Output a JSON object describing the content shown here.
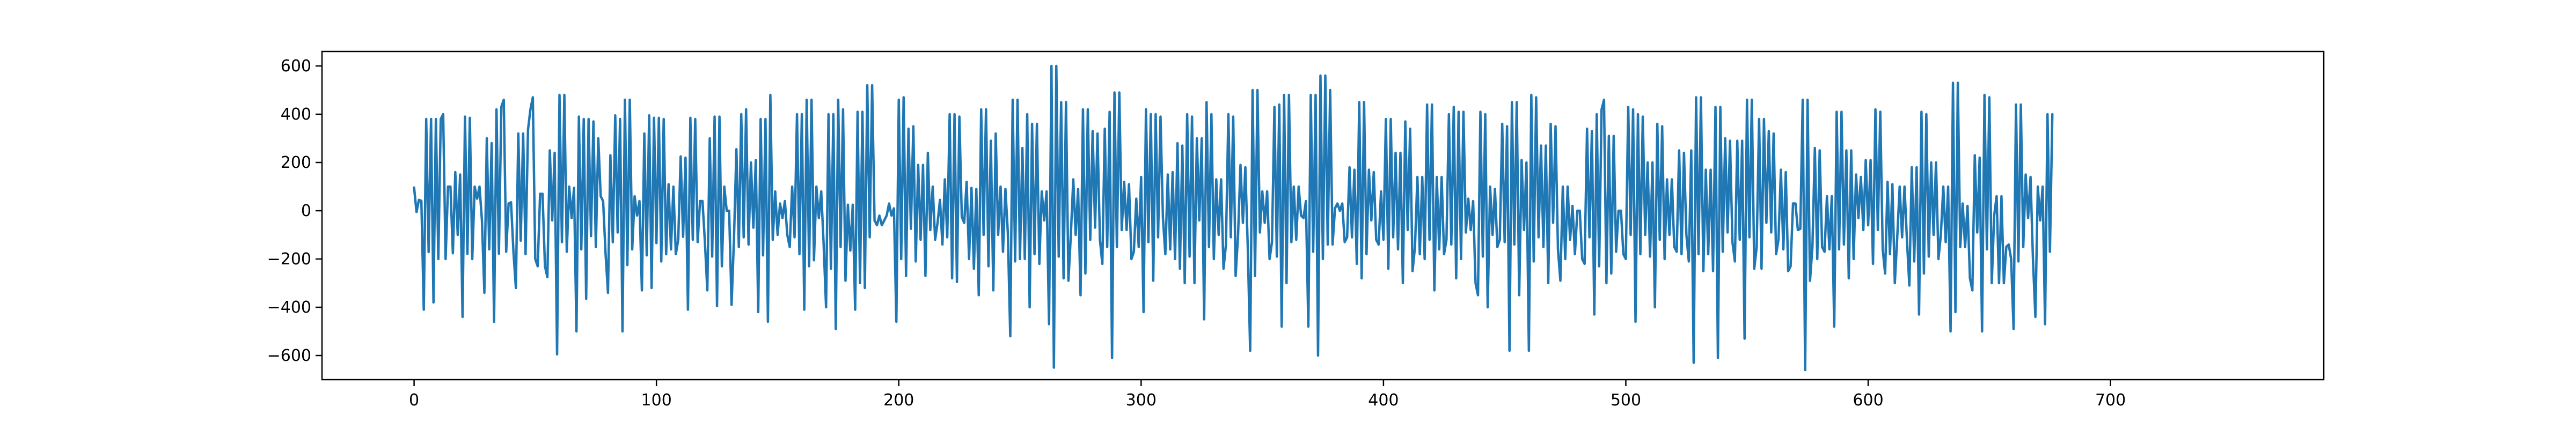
{
  "chart_data": {
    "type": "line",
    "title": "",
    "xlabel": "",
    "ylabel": "",
    "xlim": [
      -38,
      788
    ],
    "ylim": [
      -700,
      660
    ],
    "xticks": [
      0,
      100,
      200,
      300,
      400,
      500,
      600,
      700
    ],
    "yticks": [
      -600,
      -400,
      -200,
      0,
      200,
      400,
      600
    ],
    "grid": false,
    "legend": "none",
    "series": [
      {
        "color": "#1f77b4",
        "x_start": 0,
        "x_step": 1,
        "values": [
          96,
          -5,
          45,
          41,
          -410,
          380,
          -171,
          380,
          -380,
          380,
          -200,
          380,
          400,
          -200,
          100,
          100,
          -176,
          160,
          -100,
          150,
          -440,
          390,
          -179,
          385,
          -200,
          100,
          50,
          100,
          -40,
          -340,
          300,
          -160,
          280,
          -460,
          420,
          -178,
          430,
          460,
          -170,
          30,
          35,
          -170,
          -320,
          320,
          -124,
          320,
          -180,
          335,
          420,
          470,
          -200,
          -230,
          70,
          70,
          -230,
          -275,
          250,
          -40,
          240,
          -595,
          480,
          -130,
          480,
          -170,
          100,
          -30,
          95,
          -500,
          390,
          -160,
          380,
          -365,
          380,
          -105,
          370,
          -150,
          300,
          60,
          40,
          -175,
          -340,
          230,
          -130,
          395,
          -90,
          380,
          -500,
          460,
          -225,
          460,
          -160,
          60,
          -20,
          40,
          -330,
          320,
          -185,
          395,
          -320,
          385,
          -134,
          385,
          -210,
          380,
          -180,
          110,
          -160,
          100,
          -180,
          -120,
          225,
          -108,
          220,
          -410,
          385,
          -120,
          380,
          -130,
          40,
          40,
          -130,
          -330,
          300,
          -190,
          390,
          -395,
          390,
          -230,
          100,
          0,
          0,
          -390,
          -115,
          255,
          -150,
          400,
          -110,
          420,
          -140,
          200,
          -70,
          210,
          -420,
          380,
          -185,
          380,
          -460,
          480,
          -120,
          80,
          -100,
          30,
          -30,
          40,
          -100,
          -150,
          100,
          -110,
          400,
          -180,
          400,
          -410,
          460,
          -230,
          460,
          -205,
          100,
          -30,
          80,
          -140,
          -400,
          400,
          -240,
          400,
          -490,
          460,
          -150,
          420,
          -290,
          25,
          -165,
          25,
          -410,
          410,
          -300,
          410,
          -320,
          520,
          -110,
          520,
          -40,
          -60,
          -20,
          -60,
          -40,
          -20,
          30,
          -20,
          10,
          -460,
          460,
          -200,
          470,
          -270,
          340,
          -75,
          350,
          -210,
          190,
          -120,
          190,
          -270,
          240,
          -80,
          100,
          -120,
          -50,
          45,
          -140,
          130,
          -110,
          400,
          -280,
          400,
          -295,
          390,
          -25,
          -50,
          120,
          -200,
          95,
          -240,
          90,
          -350,
          420,
          -100,
          420,
          -230,
          290,
          -330,
          320,
          -100,
          100,
          -170,
          90,
          -90,
          -520,
          460,
          -210,
          460,
          -200,
          260,
          -200,
          400,
          -400,
          360,
          -180,
          360,
          -220,
          80,
          -40,
          80,
          -470,
          600,
          -650,
          600,
          -190,
          450,
          -280,
          450,
          -290,
          -100,
          130,
          -100,
          90,
          -350,
          420,
          -260,
          420,
          -120,
          330,
          -70,
          320,
          -120,
          -220,
          340,
          -150,
          410,
          -610,
          490,
          -150,
          490,
          -80,
          120,
          -80,
          110,
          -200,
          -170,
          50,
          -150,
          140,
          -420,
          420,
          -130,
          400,
          -290,
          400,
          -110,
          390,
          -30,
          -180,
          150,
          -160,
          160,
          -200,
          280,
          -240,
          270,
          -300,
          400,
          -190,
          390,
          -300,
          300,
          -40,
          300,
          -450,
          450,
          -150,
          400,
          -200,
          130,
          -100,
          130,
          -240,
          -140,
          400,
          -110,
          390,
          -270,
          -100,
          190,
          -50,
          180,
          -150,
          -580,
          500,
          -270,
          500,
          -90,
          80,
          -50,
          80,
          -200,
          -130,
          430,
          -190,
          440,
          -480,
          480,
          -300,
          480,
          -130,
          100,
          -120,
          100,
          -20,
          -30,
          40,
          -480,
          480,
          -170,
          480,
          -600,
          560,
          -200,
          560,
          -140,
          500,
          -140,
          10,
          30,
          0,
          30,
          -130,
          -110,
          180,
          -110,
          170,
          -220,
          450,
          -280,
          450,
          -180,
          170,
          -40,
          160,
          -120,
          -140,
          80,
          -120,
          380,
          -240,
          380,
          -110,
          240,
          -160,
          240,
          -300,
          370,
          -80,
          340,
          -250,
          -150,
          140,
          -180,
          140,
          -200,
          440,
          -120,
          440,
          -330,
          140,
          -160,
          140,
          -180,
          -120,
          400,
          -140,
          430,
          -280,
          410,
          -200,
          410,
          -90,
          50,
          -80,
          40,
          -300,
          -350,
          410,
          -190,
          400,
          -400,
          100,
          -100,
          90,
          -150,
          -120,
          360,
          -130,
          350,
          -580,
          450,
          -140,
          450,
          -350,
          210,
          -80,
          200,
          -580,
          480,
          -210,
          470,
          -110,
          270,
          -150,
          270,
          -300,
          360,
          -50,
          350,
          -160,
          -290,
          100,
          -200,
          100,
          -120,
          20,
          -180,
          0,
          0,
          -200,
          -220,
          340,
          -110,
          330,
          -430,
          400,
          -230,
          420,
          460,
          -300,
          310,
          -260,
          310,
          -170,
          0,
          0,
          -180,
          -200,
          430,
          -100,
          420,
          -460,
          400,
          -180,
          390,
          -100,
          200,
          -190,
          200,
          -400,
          360,
          -120,
          350,
          -200,
          130,
          -100,
          130,
          -150,
          -170,
          250,
          -180,
          240,
          -100,
          -210,
          250,
          -630,
          470,
          -180,
          470,
          -250,
          170,
          -180,
          170,
          -250,
          430,
          -610,
          430,
          -170,
          300,
          -90,
          290,
          -130,
          -210,
          290,
          -120,
          290,
          -530,
          460,
          -110,
          460,
          -240,
          -150,
          380,
          -240,
          380,
          -50,
          330,
          -90,
          320,
          -180,
          -120,
          170,
          -160,
          160,
          -250,
          -230,
          30,
          30,
          -80,
          -75,
          460,
          -660,
          460,
          -290,
          -150,
          260,
          -200,
          250,
          -150,
          -170,
          60,
          -160,
          60,
          -480,
          410,
          -160,
          410,
          -140,
          250,
          -280,
          250,
          -200,
          150,
          -30,
          140,
          -80,
          210,
          -60,
          210,
          -220,
          420,
          -80,
          410,
          -160,
          -260,
          120,
          -180,
          110,
          -300,
          -110,
          100,
          -110,
          100,
          -120,
          -310,
          180,
          -210,
          180,
          -430,
          410,
          -260,
          400,
          -190,
          200,
          -100,
          200,
          -200,
          -100,
          100,
          -130,
          100,
          -500,
          530,
          -420,
          530,
          -150,
          30,
          -150,
          20,
          -280,
          -330,
          230,
          -90,
          220,
          -500,
          480,
          -160,
          470,
          -300,
          -20,
          60,
          -300,
          60,
          -300,
          -150,
          -140,
          -200,
          -490,
          440,
          -210,
          440,
          -150,
          150,
          -30,
          140,
          -200,
          -440,
          100,
          -40,
          100,
          -470,
          400,
          -170,
          400
        ]
      }
    ]
  }
}
